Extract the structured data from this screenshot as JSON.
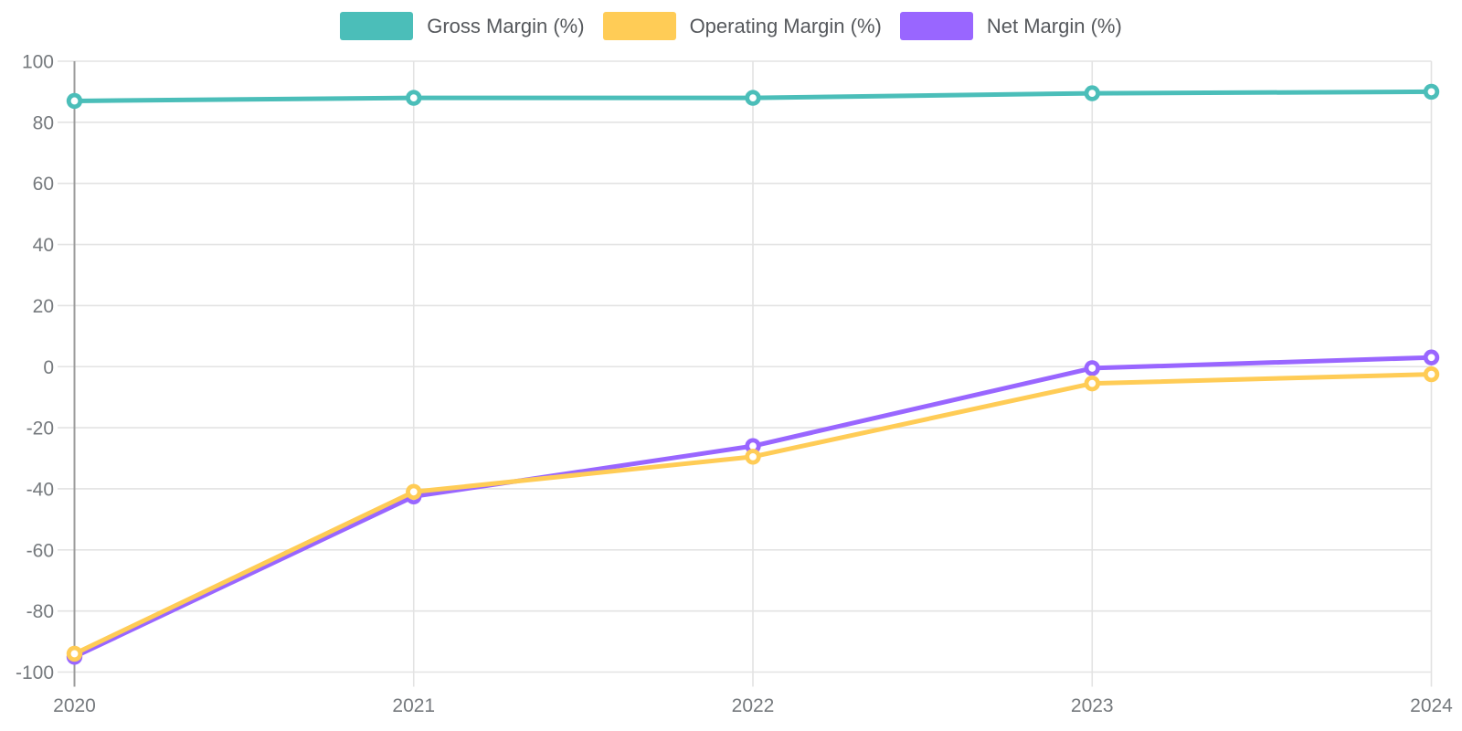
{
  "chart_data": {
    "type": "line",
    "title": "",
    "xlabel": "",
    "ylabel": "",
    "categories": [
      "2020",
      "2021",
      "2022",
      "2023",
      "2024"
    ],
    "series": [
      {
        "name": "Gross Margin (%)",
        "color": "#4BBEB9",
        "values": [
          87,
          88,
          88,
          89.5,
          90
        ]
      },
      {
        "name": "Operating Margin (%)",
        "color": "#FFCC56",
        "values": [
          -94,
          -41,
          -29.5,
          -5.5,
          -2.5
        ]
      },
      {
        "name": "Net Margin (%)",
        "color": "#9966FF",
        "values": [
          -95,
          -42.5,
          -26,
          -0.5,
          3
        ]
      }
    ],
    "ylim": [
      -100,
      100
    ],
    "y_ticks": [
      100,
      80,
      60,
      40,
      20,
      0,
      -20,
      -40,
      -60,
      -80,
      -100
    ],
    "grid": true,
    "legend_position": "top"
  },
  "styles": {
    "grid_color": "#E3E3E3",
    "axis_color": "#9B9B9B",
    "tick_label_color": "#75797D",
    "legend_text_color": "#55585C",
    "background": "#FFFFFF",
    "marker_hole_color": "#FFFFFF"
  }
}
